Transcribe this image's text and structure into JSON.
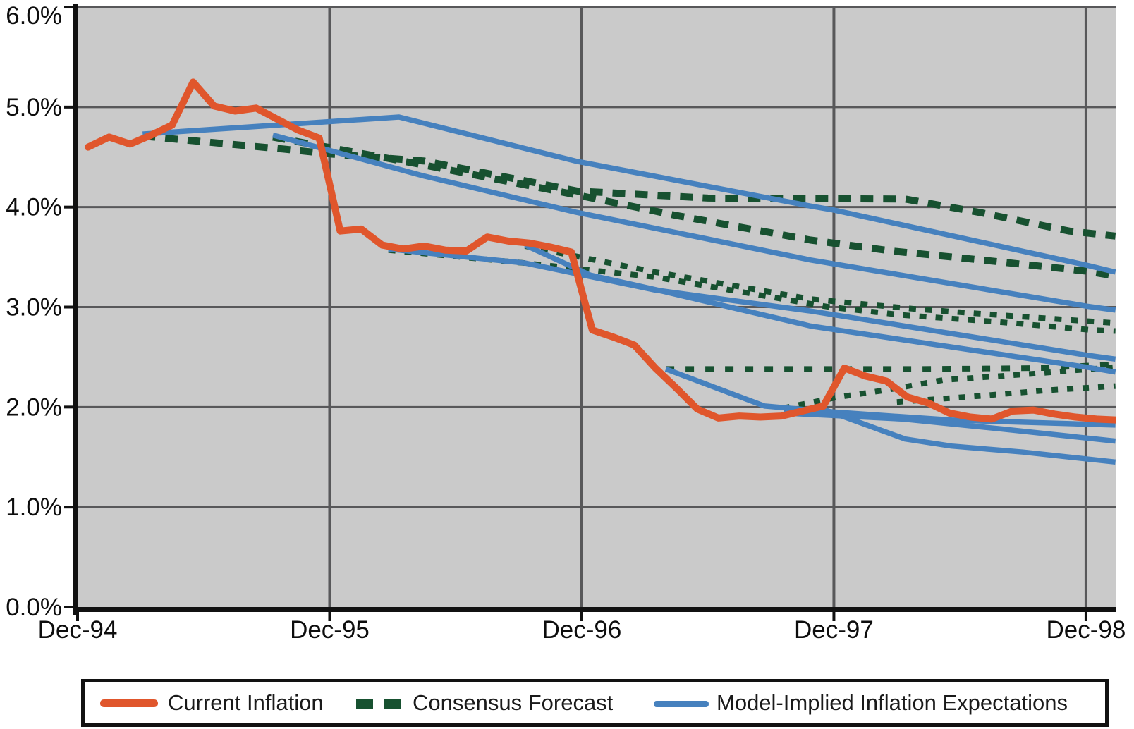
{
  "colors": {
    "orange": "#E0562C",
    "green": "#175130",
    "blue": "#4681BE",
    "plot_bg": "#CACACA",
    "grid": "#58585A",
    "axis": "#111111",
    "text": "#0D0D0D"
  },
  "legend": {
    "items": [
      {
        "label": "Current Inflation",
        "swatch": "orange"
      },
      {
        "label": "Consensus Forecast",
        "swatch": "green"
      },
      {
        "label": "Model-Implied Inflation Expectations",
        "swatch": "blue"
      }
    ]
  },
  "chart_data": {
    "type": "line",
    "title": "",
    "xlabel": "",
    "ylabel": "",
    "ylim": [
      0,
      6
    ],
    "xlim_months": [
      0,
      49.4
    ],
    "grid": "on",
    "legend_position": "bottom",
    "y_ticks": [
      {
        "label": "6.0%",
        "value": 6
      },
      {
        "label": "5.0%",
        "value": 5
      },
      {
        "label": "4.0%",
        "value": 4
      },
      {
        "label": "3.0%",
        "value": 3
      },
      {
        "label": "2.0%",
        "value": 2
      },
      {
        "label": "1.0%",
        "value": 1
      },
      {
        "label": "0.0%",
        "value": 0
      }
    ],
    "x_ticks": [
      {
        "label": "Dec-94",
        "month": 0
      },
      {
        "label": "Dec-95",
        "month": 12
      },
      {
        "label": "Dec-96",
        "month": 24
      },
      {
        "label": "Dec-97",
        "month": 36
      },
      {
        "label": "Dec-98",
        "month": 48
      }
    ],
    "series": [
      {
        "name": "Current Inflation",
        "type": "monthly",
        "color_key": "orange",
        "style": "solid",
        "start_month": 0,
        "values": [
          4.6,
          4.7,
          4.63,
          4.72,
          4.82,
          5.25,
          5.01,
          4.96,
          4.99,
          4.88,
          4.77,
          4.69,
          3.76,
          3.78,
          3.62,
          3.58,
          3.61,
          3.57,
          3.56,
          3.7,
          3.66,
          3.64,
          3.6,
          3.55,
          2.77,
          2.7,
          2.62,
          2.39,
          2.19,
          1.98,
          1.89,
          1.91,
          1.9,
          1.91,
          1.96,
          2.01,
          2.39,
          2.31,
          2.26,
          2.1,
          2.04,
          1.94,
          1.9,
          1.88,
          1.96,
          1.97,
          1.93,
          1.9,
          1.88,
          1.87
        ]
      },
      {
        "name": "Consensus Forecast",
        "type": "forecast-set",
        "color_key": "green",
        "style": "dashed",
        "vintages": [
          {
            "points": [
              [
                3.1,
                4.71
              ],
              [
                9.8,
                4.58
              ],
              [
                12.1,
                4.53
              ],
              [
                16.5,
                4.46
              ],
              [
                23.8,
                4.16
              ],
              [
                30,
                4.09
              ],
              [
                39.4,
                4.08
              ],
              [
                43.1,
                3.94
              ],
              [
                47.2,
                3.76
              ],
              [
                49.4,
                3.71
              ]
            ],
            "dash": "18 14",
            "width": 10
          },
          {
            "points": [
              [
                9.3,
                4.7
              ],
              [
                16.5,
                4.42
              ],
              [
                23.8,
                4.12
              ],
              [
                28.4,
                3.92
              ],
              [
                34.9,
                3.67
              ],
              [
                38.8,
                3.56
              ],
              [
                44,
                3.45
              ],
              [
                48,
                3.36
              ],
              [
                49.4,
                3.31
              ]
            ],
            "dash": "18 14",
            "width": 10
          },
          {
            "points": [
              [
                14.8,
                3.57
              ],
              [
                21.3,
                3.44
              ],
              [
                27.5,
                3.3
              ],
              [
                35.8,
                3.0
              ],
              [
                39.3,
                2.92
              ],
              [
                43.9,
                2.85
              ],
              [
                48.3,
                2.77
              ],
              [
                49.4,
                2.76
              ]
            ],
            "dash": "10 13",
            "width": 8
          },
          {
            "points": [
              [
                21.3,
                3.61
              ],
              [
                27.5,
                3.35
              ],
              [
                34.9,
                3.08
              ],
              [
                39.9,
                2.98
              ],
              [
                43.9,
                2.92
              ],
              [
                48,
                2.86
              ],
              [
                49.4,
                2.84
              ]
            ],
            "dash": "10 13",
            "width": 8
          },
          {
            "points": [
              [
                28,
                2.38
              ],
              [
                40,
                2.38
              ],
              [
                46,
                2.39
              ],
              [
                49.4,
                2.43
              ]
            ],
            "dash": "12 16",
            "width": 8
          },
          {
            "points": [
              [
                33.6,
                1.99
              ],
              [
                36.2,
                2.1
              ],
              [
                38.5,
                2.17
              ],
              [
                41.2,
                2.27
              ],
              [
                45.3,
                2.33
              ],
              [
                49.4,
                2.4
              ]
            ],
            "dash": "9 13",
            "width": 8
          },
          {
            "points": [
              [
                39,
                2.05
              ],
              [
                42.9,
                2.11
              ],
              [
                46.3,
                2.17
              ],
              [
                49.4,
                2.21
              ]
            ],
            "dash": "9 13",
            "width": 8
          }
        ]
      },
      {
        "name": "Model-Implied Inflation Expectations",
        "type": "forecast-set",
        "color_key": "blue",
        "style": "solid",
        "vintages": [
          {
            "points": [
              [
                3.1,
                4.73
              ],
              [
                15.3,
                4.9
              ],
              [
                23.7,
                4.46
              ],
              [
                34.9,
                4.01
              ],
              [
                36,
                3.97
              ],
              [
                48,
                3.42
              ],
              [
                49.4,
                3.35
              ]
            ]
          },
          {
            "points": [
              [
                9.3,
                4.72
              ],
              [
                16.5,
                4.31
              ],
              [
                23.7,
                3.95
              ],
              [
                34.9,
                3.47
              ],
              [
                48,
                3.01
              ],
              [
                49.4,
                2.97
              ]
            ]
          },
          {
            "points": [
              [
                14.8,
                3.58
              ],
              [
                21.3,
                3.44
              ],
              [
                27.5,
                3.17
              ],
              [
                34.9,
                2.96
              ],
              [
                48,
                2.52
              ],
              [
                49.4,
                2.48
              ]
            ]
          },
          {
            "points": [
              [
                21.3,
                3.62
              ],
              [
                24.4,
                3.32
              ],
              [
                27.6,
                3.17
              ],
              [
                34.9,
                2.81
              ],
              [
                48,
                2.4
              ],
              [
                49.4,
                2.35
              ]
            ]
          },
          {
            "points": [
              [
                28,
                2.38
              ],
              [
                32.7,
                2.01
              ],
              [
                36,
                1.95
              ],
              [
                41.6,
                1.87
              ],
              [
                49.4,
                1.82
              ]
            ]
          },
          {
            "points": [
              [
                33.6,
                1.94
              ],
              [
                39.3,
                1.88
              ],
              [
                44,
                1.78
              ],
              [
                49.4,
                1.66
              ]
            ]
          },
          {
            "points": [
              [
                35.2,
                2.0
              ],
              [
                39.4,
                1.68
              ],
              [
                41.6,
                1.61
              ],
              [
                45,
                1.55
              ],
              [
                49.4,
                1.45
              ]
            ]
          }
        ]
      }
    ]
  }
}
